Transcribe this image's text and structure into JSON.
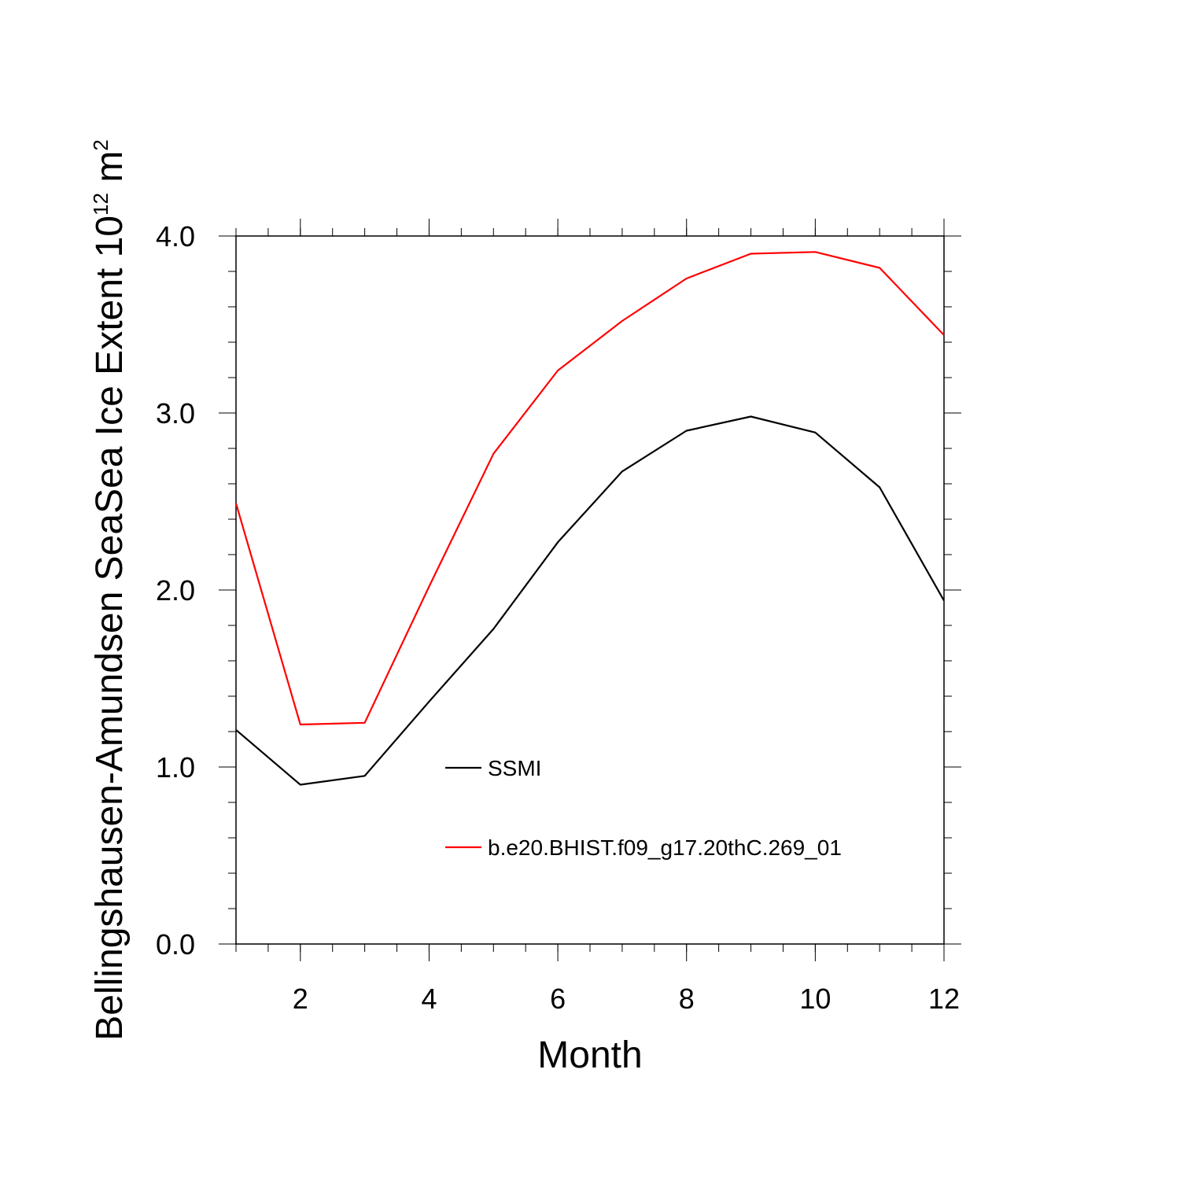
{
  "chart_data": {
    "type": "line",
    "title": "",
    "xlabel": "Month",
    "ylabel": {
      "prefix": "Bellingshausen-Amundsen SeaSea Ice Extent 10",
      "exponent_1": "12",
      "unit": " m",
      "exponent_2": "2"
    },
    "xlim": [
      1,
      12
    ],
    "ylim": [
      0,
      4
    ],
    "x_ticks": [
      2,
      4,
      6,
      8,
      10,
      12
    ],
    "x_tick_labels": [
      "2",
      "4",
      "6",
      "8",
      "10",
      "12"
    ],
    "y_ticks": [
      0,
      1,
      2,
      3,
      4
    ],
    "y_tick_labels": [
      "0.0",
      "1.0",
      "2.0",
      "3.0",
      "4.0"
    ],
    "x": [
      1,
      2,
      3,
      4,
      5,
      6,
      7,
      8,
      9,
      10,
      11,
      12
    ],
    "series": [
      {
        "name": "SSMI",
        "color": "#000000",
        "values": [
          1.21,
          0.9,
          0.95,
          1.37,
          1.78,
          2.27,
          2.67,
          2.9,
          2.98,
          2.89,
          2.58,
          1.94
        ]
      },
      {
        "name": "b.e20.BHIST.f09_g17.20thC.269_01",
        "color": "#ff0000",
        "values": [
          2.49,
          1.24,
          1.25,
          2.02,
          2.77,
          3.24,
          3.52,
          3.76,
          3.9,
          3.91,
          3.82,
          3.44
        ]
      }
    ],
    "grid": false,
    "legend_position": "center-right"
  }
}
